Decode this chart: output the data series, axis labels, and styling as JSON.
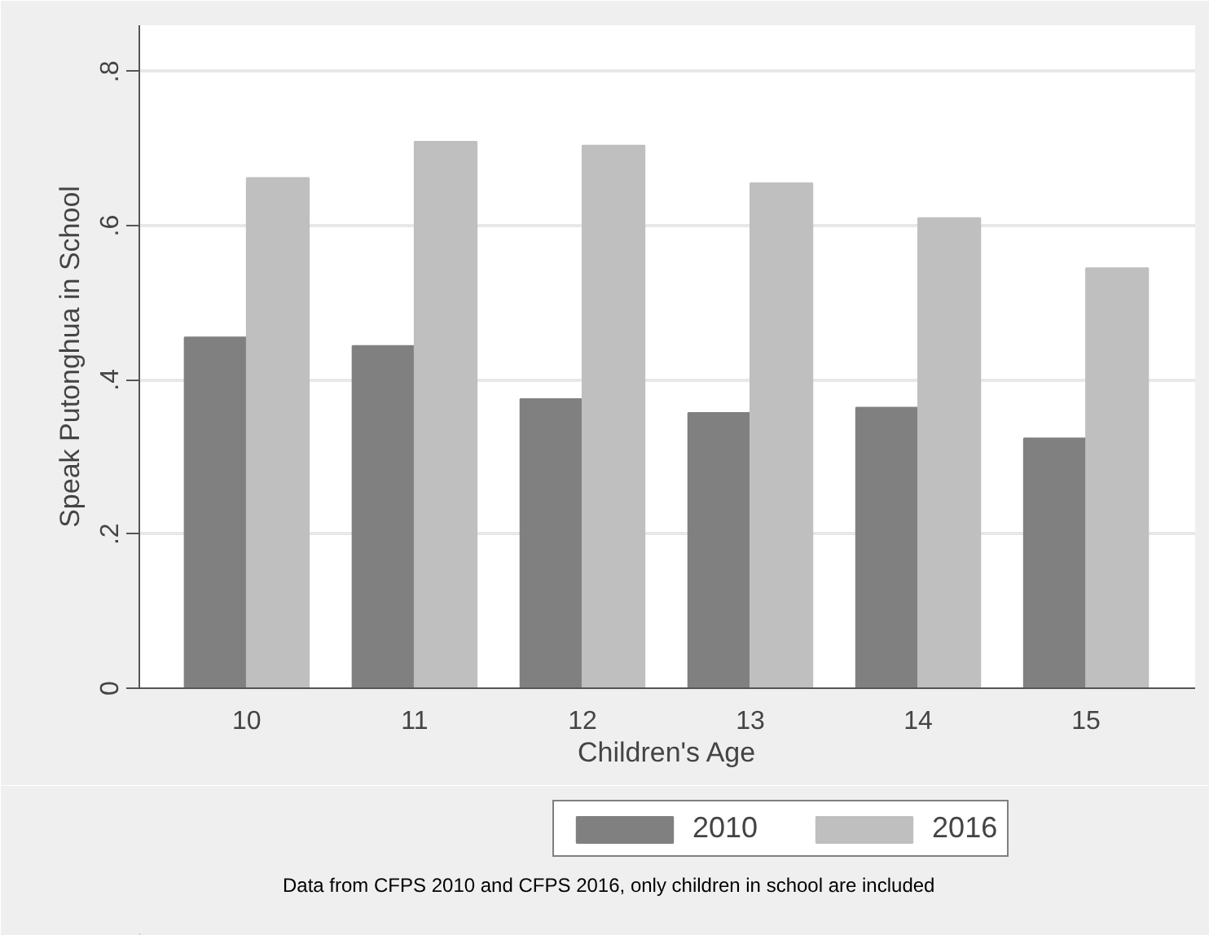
{
  "chart_data": {
    "type": "bar",
    "categories": [
      "10",
      "11",
      "12",
      "13",
      "14",
      "15"
    ],
    "series": [
      {
        "name": "2010",
        "color": "#808080",
        "values": [
          0.455,
          0.444,
          0.375,
          0.357,
          0.364,
          0.324
        ]
      },
      {
        "name": "2016",
        "color": "#bfbfbf",
        "values": [
          0.662,
          0.709,
          0.704,
          0.655,
          0.61,
          0.545
        ]
      }
    ],
    "xlabel": "Children's Age",
    "ylabel": "Speak Putonghua in School",
    "ylim": [
      0,
      0.86
    ],
    "yticks": [
      0,
      {
        "value": 0.2,
        "label": ".2"
      },
      {
        "value": 0.4,
        "label": ".4"
      },
      {
        "value": 0.6,
        "label": ".6"
      },
      {
        "value": 0.8,
        "label": ".8"
      }
    ],
    "grid": "y",
    "legend": "bottom",
    "annotations": [
      "Data from CFPS 2010 and CFPS 2016, only children in school are included"
    ]
  }
}
